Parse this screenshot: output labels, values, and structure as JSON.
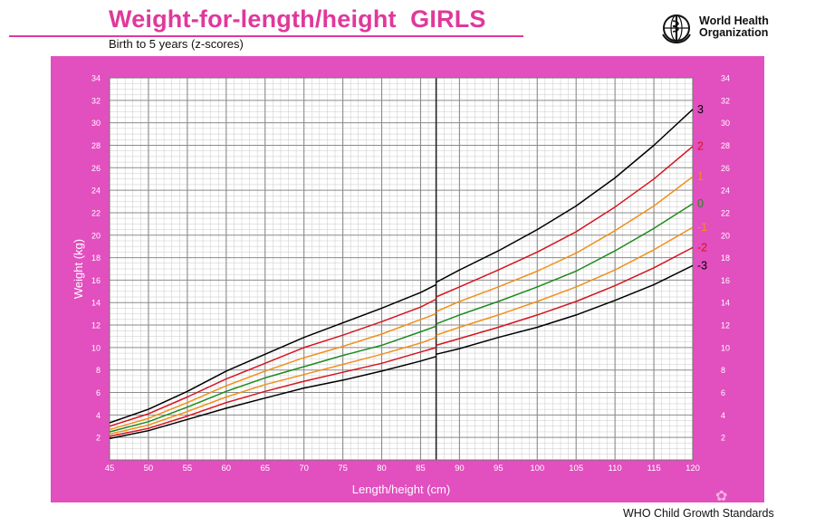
{
  "header": {
    "title": "Weight-for-length/height  GIRLS",
    "subtitle": "Birth to 5 years (z-scores)",
    "org_line1": "World Health",
    "org_line2": "Organization",
    "logo_icon": "who-emblem-icon"
  },
  "footer": {
    "source": "WHO Child Growth Standards"
  },
  "colors": {
    "accent": "#e0389b",
    "panel": "#e24fbf",
    "z3": "#000000",
    "z2": "#d4151f",
    "z1": "#f0901a",
    "z0": "#1f8a1f"
  },
  "chart_data": {
    "type": "line",
    "title": "Weight-for-length/height  GIRLS",
    "subtitle": "Birth to 5 years (z-scores)",
    "xlabel": "Length/height (cm)",
    "ylabel": "Weight (kg)",
    "xlim": [
      45,
      120
    ],
    "ylim": [
      0,
      34
    ],
    "x_ticks": [
      45,
      50,
      55,
      60,
      65,
      70,
      75,
      80,
      85,
      90,
      95,
      100,
      105,
      110,
      115,
      120
    ],
    "y_ticks": [
      2,
      4,
      6,
      8,
      10,
      12,
      14,
      16,
      18,
      20,
      22,
      24,
      26,
      28,
      30,
      32,
      34
    ],
    "grid": true,
    "length_segment": {
      "x": [
        45,
        50,
        55,
        60,
        65,
        70,
        75,
        80,
        85,
        87
      ],
      "series": [
        {
          "name": "3",
          "values": [
            3.3,
            4.5,
            6.1,
            7.9,
            9.4,
            10.9,
            12.2,
            13.5,
            14.9,
            15.6
          ]
        },
        {
          "name": "2",
          "values": [
            3.0,
            4.1,
            5.6,
            7.2,
            8.6,
            10.0,
            11.1,
            12.3,
            13.6,
            14.3
          ]
        },
        {
          "name": "1",
          "values": [
            2.7,
            3.7,
            5.1,
            6.6,
            7.9,
            9.1,
            10.1,
            11.2,
            12.5,
            13.0
          ]
        },
        {
          "name": "0",
          "values": [
            2.5,
            3.4,
            4.7,
            6.1,
            7.3,
            8.3,
            9.3,
            10.2,
            11.4,
            11.9
          ]
        },
        {
          "name": "-1",
          "values": [
            2.3,
            3.1,
            4.3,
            5.6,
            6.7,
            7.6,
            8.5,
            9.4,
            10.4,
            10.9
          ]
        },
        {
          "name": "-2",
          "values": [
            2.1,
            2.8,
            3.9,
            5.1,
            6.1,
            7.0,
            7.8,
            8.6,
            9.6,
            10.0
          ]
        },
        {
          "name": "-3",
          "values": [
            1.9,
            2.6,
            3.6,
            4.6,
            5.5,
            6.4,
            7.1,
            7.9,
            8.8,
            9.2
          ]
        }
      ]
    },
    "height_segment": {
      "x": [
        87,
        90,
        95,
        100,
        105,
        110,
        115,
        120
      ],
      "series": [
        {
          "name": "3",
          "values": [
            15.8,
            16.9,
            18.6,
            20.5,
            22.6,
            25.1,
            28.0,
            31.2
          ]
        },
        {
          "name": "2",
          "values": [
            14.5,
            15.4,
            16.9,
            18.5,
            20.3,
            22.5,
            25.0,
            27.9
          ]
        },
        {
          "name": "1",
          "values": [
            13.2,
            14.1,
            15.4,
            16.8,
            18.4,
            20.4,
            22.6,
            25.2
          ]
        },
        {
          "name": "0",
          "values": [
            12.1,
            12.9,
            14.1,
            15.4,
            16.8,
            18.6,
            20.6,
            22.8
          ]
        },
        {
          "name": "-1",
          "values": [
            11.1,
            11.8,
            12.9,
            14.1,
            15.4,
            16.9,
            18.7,
            20.7
          ]
        },
        {
          "name": "-2",
          "values": [
            10.2,
            10.8,
            11.8,
            12.9,
            14.1,
            15.5,
            17.1,
            18.9
          ]
        },
        {
          "name": "-3",
          "values": [
            9.4,
            9.9,
            10.9,
            11.8,
            12.9,
            14.2,
            15.6,
            17.3
          ]
        }
      ]
    }
  }
}
